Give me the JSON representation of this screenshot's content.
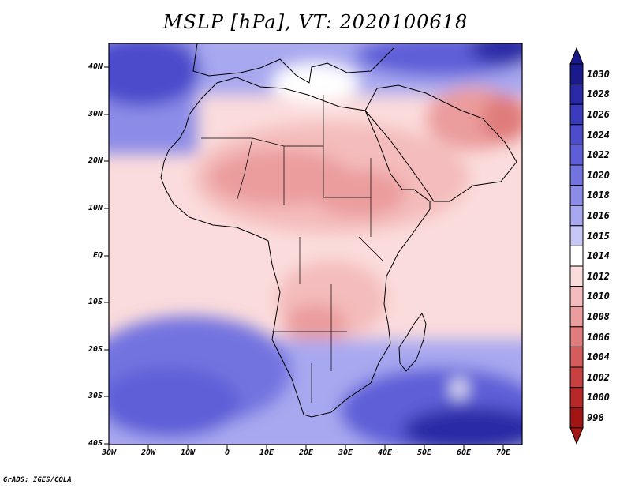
{
  "title": "MSLP [hPa], VT: 2020100618",
  "credit": "GrADS: IGES/COLA",
  "axes": {
    "lat_labels": [
      "40N",
      "30N",
      "20N",
      "10N",
      "EQ",
      "10S",
      "20S",
      "30S",
      "40S"
    ],
    "lon_labels": [
      "30W",
      "20W",
      "10W",
      "0",
      "10E",
      "20E",
      "30E",
      "40E",
      "50E",
      "60E",
      "70E"
    ]
  },
  "colorbar": {
    "levels": [
      "1030",
      "1028",
      "1026",
      "1024",
      "1022",
      "1020",
      "1018",
      "1016",
      "1015",
      "1014",
      "1012",
      "1010",
      "1008",
      "1006",
      "1004",
      "1002",
      "1000",
      "998"
    ],
    "colors": [
      "#1a1a8c",
      "#2a2aa6",
      "#3b3bbd",
      "#4c4ccc",
      "#5e5ed8",
      "#7373e0",
      "#8c8ce8",
      "#a8a8f0",
      "#c8c8f6",
      "#ffffff",
      "#fbdcdc",
      "#f4bcbc",
      "#eb9c9c",
      "#e07c7c",
      "#d45c5c",
      "#c84040",
      "#b82828",
      "#a31515"
    ]
  },
  "field": {
    "variable": "MSLP",
    "units": "hPa",
    "valid_time": "2020100618",
    "extent": {
      "lon_min": -30,
      "lon_max": 75,
      "lat_min": -40,
      "lat_max": 45
    }
  }
}
